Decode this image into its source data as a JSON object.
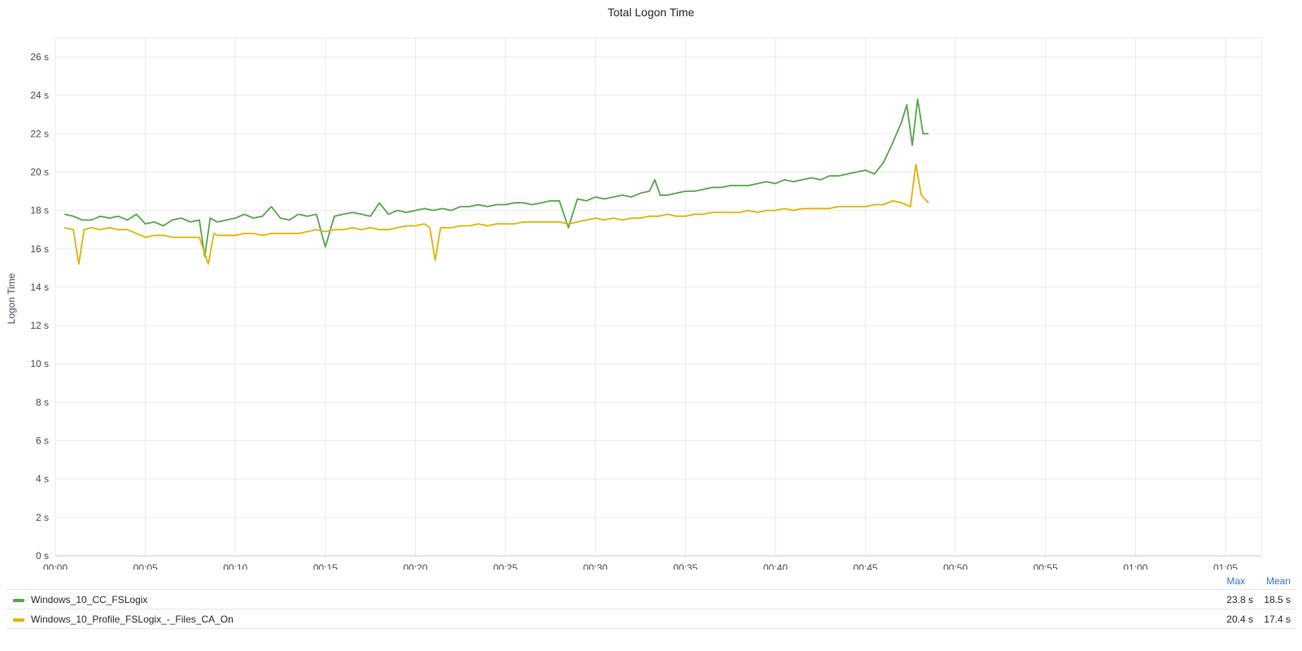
{
  "chart_data": {
    "type": "line",
    "title": "Total Logon Time",
    "ylabel": "Logon Time",
    "y_unit": "s",
    "ylim": [
      0,
      27
    ],
    "y_ticks": [
      "0 s",
      "2 s",
      "4 s",
      "6 s",
      "8 s",
      "10 s",
      "12 s",
      "14 s",
      "16 s",
      "18 s",
      "20 s",
      "22 s",
      "24 s",
      "26 s"
    ],
    "x_range_minutes": [
      0,
      67
    ],
    "x_ticks": [
      "00:00",
      "00:05",
      "00:10",
      "00:15",
      "00:20",
      "00:25",
      "00:30",
      "00:35",
      "00:40",
      "00:45",
      "00:50",
      "00:55",
      "01:00",
      "01:05"
    ],
    "grid": true,
    "legend_placement": "bottom",
    "series": [
      {
        "name": "Windows_10_CC_FSLogix",
        "color": "#56a64b",
        "max": "23.8 s",
        "mean": "18.5 s",
        "points": [
          [
            0.5,
            17.8
          ],
          [
            1,
            17.7
          ],
          [
            1.5,
            17.5
          ],
          [
            2,
            17.5
          ],
          [
            2.5,
            17.7
          ],
          [
            3,
            17.6
          ],
          [
            3.5,
            17.7
          ],
          [
            4,
            17.5
          ],
          [
            4.5,
            17.8
          ],
          [
            5,
            17.3
          ],
          [
            5.5,
            17.4
          ],
          [
            6,
            17.2
          ],
          [
            6.5,
            17.5
          ],
          [
            7,
            17.6
          ],
          [
            7.5,
            17.4
          ],
          [
            8,
            17.5
          ],
          [
            8.3,
            15.6
          ],
          [
            8.6,
            17.6
          ],
          [
            9,
            17.4
          ],
          [
            9.5,
            17.5
          ],
          [
            10,
            17.6
          ],
          [
            10.5,
            17.8
          ],
          [
            11,
            17.6
          ],
          [
            11.5,
            17.7
          ],
          [
            12,
            18.2
          ],
          [
            12.5,
            17.6
          ],
          [
            13,
            17.5
          ],
          [
            13.5,
            17.8
          ],
          [
            14,
            17.7
          ],
          [
            14.5,
            17.8
          ],
          [
            15,
            16.1
          ],
          [
            15.5,
            17.7
          ],
          [
            16,
            17.8
          ],
          [
            16.5,
            17.9
          ],
          [
            17,
            17.8
          ],
          [
            17.5,
            17.7
          ],
          [
            18,
            18.4
          ],
          [
            18.5,
            17.8
          ],
          [
            19,
            18.0
          ],
          [
            19.5,
            17.9
          ],
          [
            20,
            18.0
          ],
          [
            20.5,
            18.1
          ],
          [
            21,
            18.0
          ],
          [
            21.5,
            18.1
          ],
          [
            22,
            18.0
          ],
          [
            22.5,
            18.2
          ],
          [
            23,
            18.2
          ],
          [
            23.5,
            18.3
          ],
          [
            24,
            18.2
          ],
          [
            24.5,
            18.3
          ],
          [
            25,
            18.3
          ],
          [
            25.5,
            18.4
          ],
          [
            26,
            18.4
          ],
          [
            26.5,
            18.3
          ],
          [
            27,
            18.4
          ],
          [
            27.5,
            18.5
          ],
          [
            28,
            18.5
          ],
          [
            28.5,
            17.1
          ],
          [
            29,
            18.6
          ],
          [
            29.5,
            18.5
          ],
          [
            30,
            18.7
          ],
          [
            30.5,
            18.6
          ],
          [
            31,
            18.7
          ],
          [
            31.5,
            18.8
          ],
          [
            32,
            18.7
          ],
          [
            32.5,
            18.9
          ],
          [
            33,
            19.0
          ],
          [
            33.3,
            19.6
          ],
          [
            33.6,
            18.8
          ],
          [
            34,
            18.8
          ],
          [
            34.5,
            18.9
          ],
          [
            35,
            19.0
          ],
          [
            35.5,
            19.0
          ],
          [
            36,
            19.1
          ],
          [
            36.5,
            19.2
          ],
          [
            37,
            19.2
          ],
          [
            37.5,
            19.3
          ],
          [
            38,
            19.3
          ],
          [
            38.5,
            19.3
          ],
          [
            39,
            19.4
          ],
          [
            39.5,
            19.5
          ],
          [
            40,
            19.4
          ],
          [
            40.5,
            19.6
          ],
          [
            41,
            19.5
          ],
          [
            41.5,
            19.6
          ],
          [
            42,
            19.7
          ],
          [
            42.5,
            19.6
          ],
          [
            43,
            19.8
          ],
          [
            43.5,
            19.8
          ],
          [
            44,
            19.9
          ],
          [
            44.5,
            20.0
          ],
          [
            45,
            20.1
          ],
          [
            45.5,
            19.9
          ],
          [
            46,
            20.5
          ],
          [
            46.5,
            21.5
          ],
          [
            47,
            22.6
          ],
          [
            47.3,
            23.5
          ],
          [
            47.6,
            21.4
          ],
          [
            47.9,
            23.8
          ],
          [
            48.2,
            22.0
          ],
          [
            48.5,
            22.0
          ]
        ]
      },
      {
        "name": "Windows_10_Profile_FSLogix_-_Files_CA_On",
        "color": "#e0b400",
        "max": "20.4 s",
        "mean": "17.4 s",
        "points": [
          [
            0.5,
            17.1
          ],
          [
            1,
            17.0
          ],
          [
            1.3,
            15.2
          ],
          [
            1.6,
            17.0
          ],
          [
            2,
            17.1
          ],
          [
            2.5,
            17.0
          ],
          [
            3,
            17.1
          ],
          [
            3.5,
            17.0
          ],
          [
            4,
            17.0
          ],
          [
            4.5,
            16.8
          ],
          [
            5,
            16.6
          ],
          [
            5.5,
            16.7
          ],
          [
            6,
            16.7
          ],
          [
            6.5,
            16.6
          ],
          [
            7,
            16.6
          ],
          [
            7.5,
            16.6
          ],
          [
            8,
            16.6
          ],
          [
            8.5,
            15.2
          ],
          [
            8.8,
            16.8
          ],
          [
            9,
            16.7
          ],
          [
            9.5,
            16.7
          ],
          [
            10,
            16.7
          ],
          [
            10.5,
            16.8
          ],
          [
            11,
            16.8
          ],
          [
            11.5,
            16.7
          ],
          [
            12,
            16.8
          ],
          [
            12.5,
            16.8
          ],
          [
            13,
            16.8
          ],
          [
            13.5,
            16.8
          ],
          [
            14,
            16.9
          ],
          [
            14.5,
            17.0
          ],
          [
            15,
            16.9
          ],
          [
            15.5,
            17.0
          ],
          [
            16,
            17.0
          ],
          [
            16.5,
            17.1
          ],
          [
            17,
            17.0
          ],
          [
            17.5,
            17.1
          ],
          [
            18,
            17.0
          ],
          [
            18.5,
            17.0
          ],
          [
            19,
            17.1
          ],
          [
            19.5,
            17.2
          ],
          [
            20,
            17.2
          ],
          [
            20.5,
            17.3
          ],
          [
            20.8,
            17.1
          ],
          [
            21.1,
            15.4
          ],
          [
            21.4,
            17.1
          ],
          [
            22,
            17.1
          ],
          [
            22.5,
            17.2
          ],
          [
            23,
            17.2
          ],
          [
            23.5,
            17.3
          ],
          [
            24,
            17.2
          ],
          [
            24.5,
            17.3
          ],
          [
            25,
            17.3
          ],
          [
            25.5,
            17.3
          ],
          [
            26,
            17.4
          ],
          [
            26.5,
            17.4
          ],
          [
            27,
            17.4
          ],
          [
            27.5,
            17.4
          ],
          [
            28,
            17.4
          ],
          [
            28.5,
            17.3
          ],
          [
            29,
            17.4
          ],
          [
            29.5,
            17.5
          ],
          [
            30,
            17.6
          ],
          [
            30.5,
            17.5
          ],
          [
            31,
            17.6
          ],
          [
            31.5,
            17.5
          ],
          [
            32,
            17.6
          ],
          [
            32.5,
            17.6
          ],
          [
            33,
            17.7
          ],
          [
            33.5,
            17.7
          ],
          [
            34,
            17.8
          ],
          [
            34.5,
            17.7
          ],
          [
            35,
            17.7
          ],
          [
            35.5,
            17.8
          ],
          [
            36,
            17.8
          ],
          [
            36.5,
            17.9
          ],
          [
            37,
            17.9
          ],
          [
            37.5,
            17.9
          ],
          [
            38,
            17.9
          ],
          [
            38.5,
            18.0
          ],
          [
            39,
            17.9
          ],
          [
            39.5,
            18.0
          ],
          [
            40,
            18.0
          ],
          [
            40.5,
            18.1
          ],
          [
            41,
            18.0
          ],
          [
            41.5,
            18.1
          ],
          [
            42,
            18.1
          ],
          [
            42.5,
            18.1
          ],
          [
            43,
            18.1
          ],
          [
            43.5,
            18.2
          ],
          [
            44,
            18.2
          ],
          [
            44.5,
            18.2
          ],
          [
            45,
            18.2
          ],
          [
            45.5,
            18.3
          ],
          [
            46,
            18.3
          ],
          [
            46.5,
            18.5
          ],
          [
            47,
            18.4
          ],
          [
            47.5,
            18.2
          ],
          [
            47.8,
            20.4
          ],
          [
            48.1,
            18.8
          ],
          [
            48.5,
            18.4
          ]
        ]
      }
    ]
  },
  "legend": {
    "max_label": "Max",
    "mean_label": "Mean"
  }
}
